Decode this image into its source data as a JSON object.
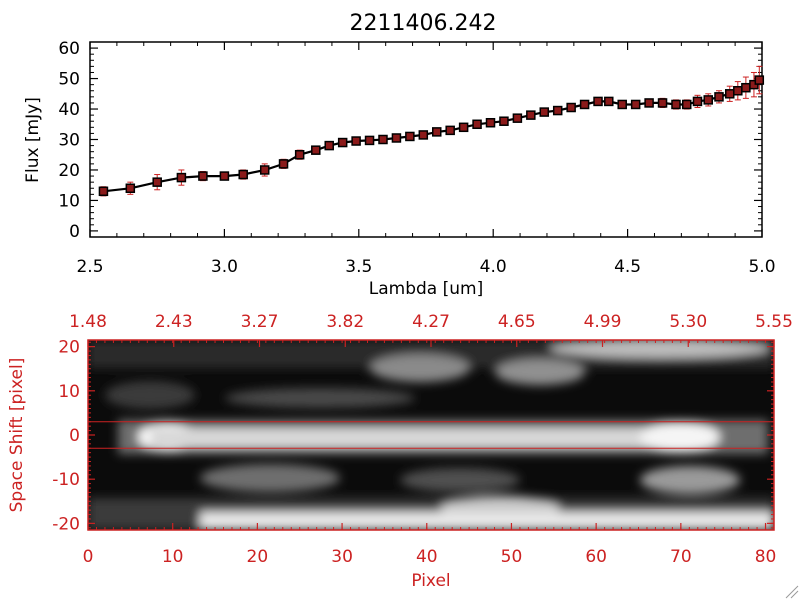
{
  "chart_data": [
    {
      "type": "line",
      "title": "2211406.242",
      "xlabel": "Lambda [um]",
      "ylabel": "Flux [mJy]",
      "xlim": [
        2.5,
        5.0
      ],
      "ylim": [
        -2,
        62
      ],
      "x_ticks": [
        "2.5",
        "3.0",
        "3.5",
        "4.0",
        "4.5",
        "5.0"
      ],
      "y_ticks": [
        "0",
        "10",
        "20",
        "30",
        "40",
        "50",
        "60"
      ],
      "grid": false,
      "series": [
        {
          "x": [
            2.55,
            2.65,
            2.75,
            2.84,
            2.92,
            3.0,
            3.07,
            3.15,
            3.22,
            3.28,
            3.34,
            3.39,
            3.44,
            3.49,
            3.54,
            3.59,
            3.64,
            3.69,
            3.74,
            3.79,
            3.84,
            3.89,
            3.94,
            3.99,
            4.04,
            4.09,
            4.14,
            4.19,
            4.24,
            4.29,
            4.34,
            4.39,
            4.43,
            4.48,
            4.53,
            4.58,
            4.63,
            4.68,
            4.72,
            4.76,
            4.8,
            4.84,
            4.88,
            4.91,
            4.94,
            4.97,
            4.99
          ],
          "y": [
            13,
            14,
            16,
            17.5,
            18,
            18,
            18.5,
            20,
            22,
            25,
            26.5,
            28,
            29,
            29.5,
            29.7,
            30,
            30.5,
            31,
            31.5,
            32.5,
            33,
            34,
            35,
            35.5,
            36,
            37,
            38,
            39,
            39.5,
            40.5,
            41.5,
            42.5,
            42.5,
            41.5,
            41.5,
            42,
            42,
            41.5,
            41.5,
            42.5,
            43,
            44,
            45,
            46,
            47,
            48,
            49.5
          ],
          "yerr": [
            1.5,
            2,
            2.5,
            2.5,
            1.5,
            1,
            1.5,
            2,
            1.5,
            1.5,
            1,
            0.5,
            0.5,
            0.5,
            0.5,
            0.5,
            0.5,
            0.5,
            0.5,
            0.5,
            0.5,
            0.5,
            0.5,
            0.5,
            0.5,
            0.5,
            0.5,
            0.5,
            0.5,
            0.5,
            0.5,
            0.5,
            0.5,
            0.5,
            0.5,
            1,
            1.5,
            1.5,
            1.5,
            2,
            2,
            2,
            2.5,
            3,
            3.5,
            4,
            4.5
          ]
        }
      ],
      "colors": {
        "line": "#000000",
        "marker": "#8b1a1a",
        "errorbar": "#cc2222"
      }
    },
    {
      "type": "heatmap",
      "xlabel": "Pixel",
      "ylabel": "Space Shift [pixel]",
      "xlim": [
        0,
        81
      ],
      "ylim": [
        -21.5,
        21.5
      ],
      "x_ticks": [
        "0",
        "10",
        "20",
        "30",
        "40",
        "50",
        "60",
        "70",
        "80"
      ],
      "y_ticks": [
        "-20",
        "-10",
        "0",
        "10",
        "20"
      ],
      "top_axis_ticks": [
        "1.48",
        "2.43",
        "3.27",
        "3.82",
        "4.27",
        "4.65",
        "4.99",
        "5.30",
        "5.55"
      ],
      "extraction_window": [
        -3,
        3
      ],
      "colormap": "grayscale",
      "colors": {
        "axes": "#cc2222"
      }
    }
  ]
}
